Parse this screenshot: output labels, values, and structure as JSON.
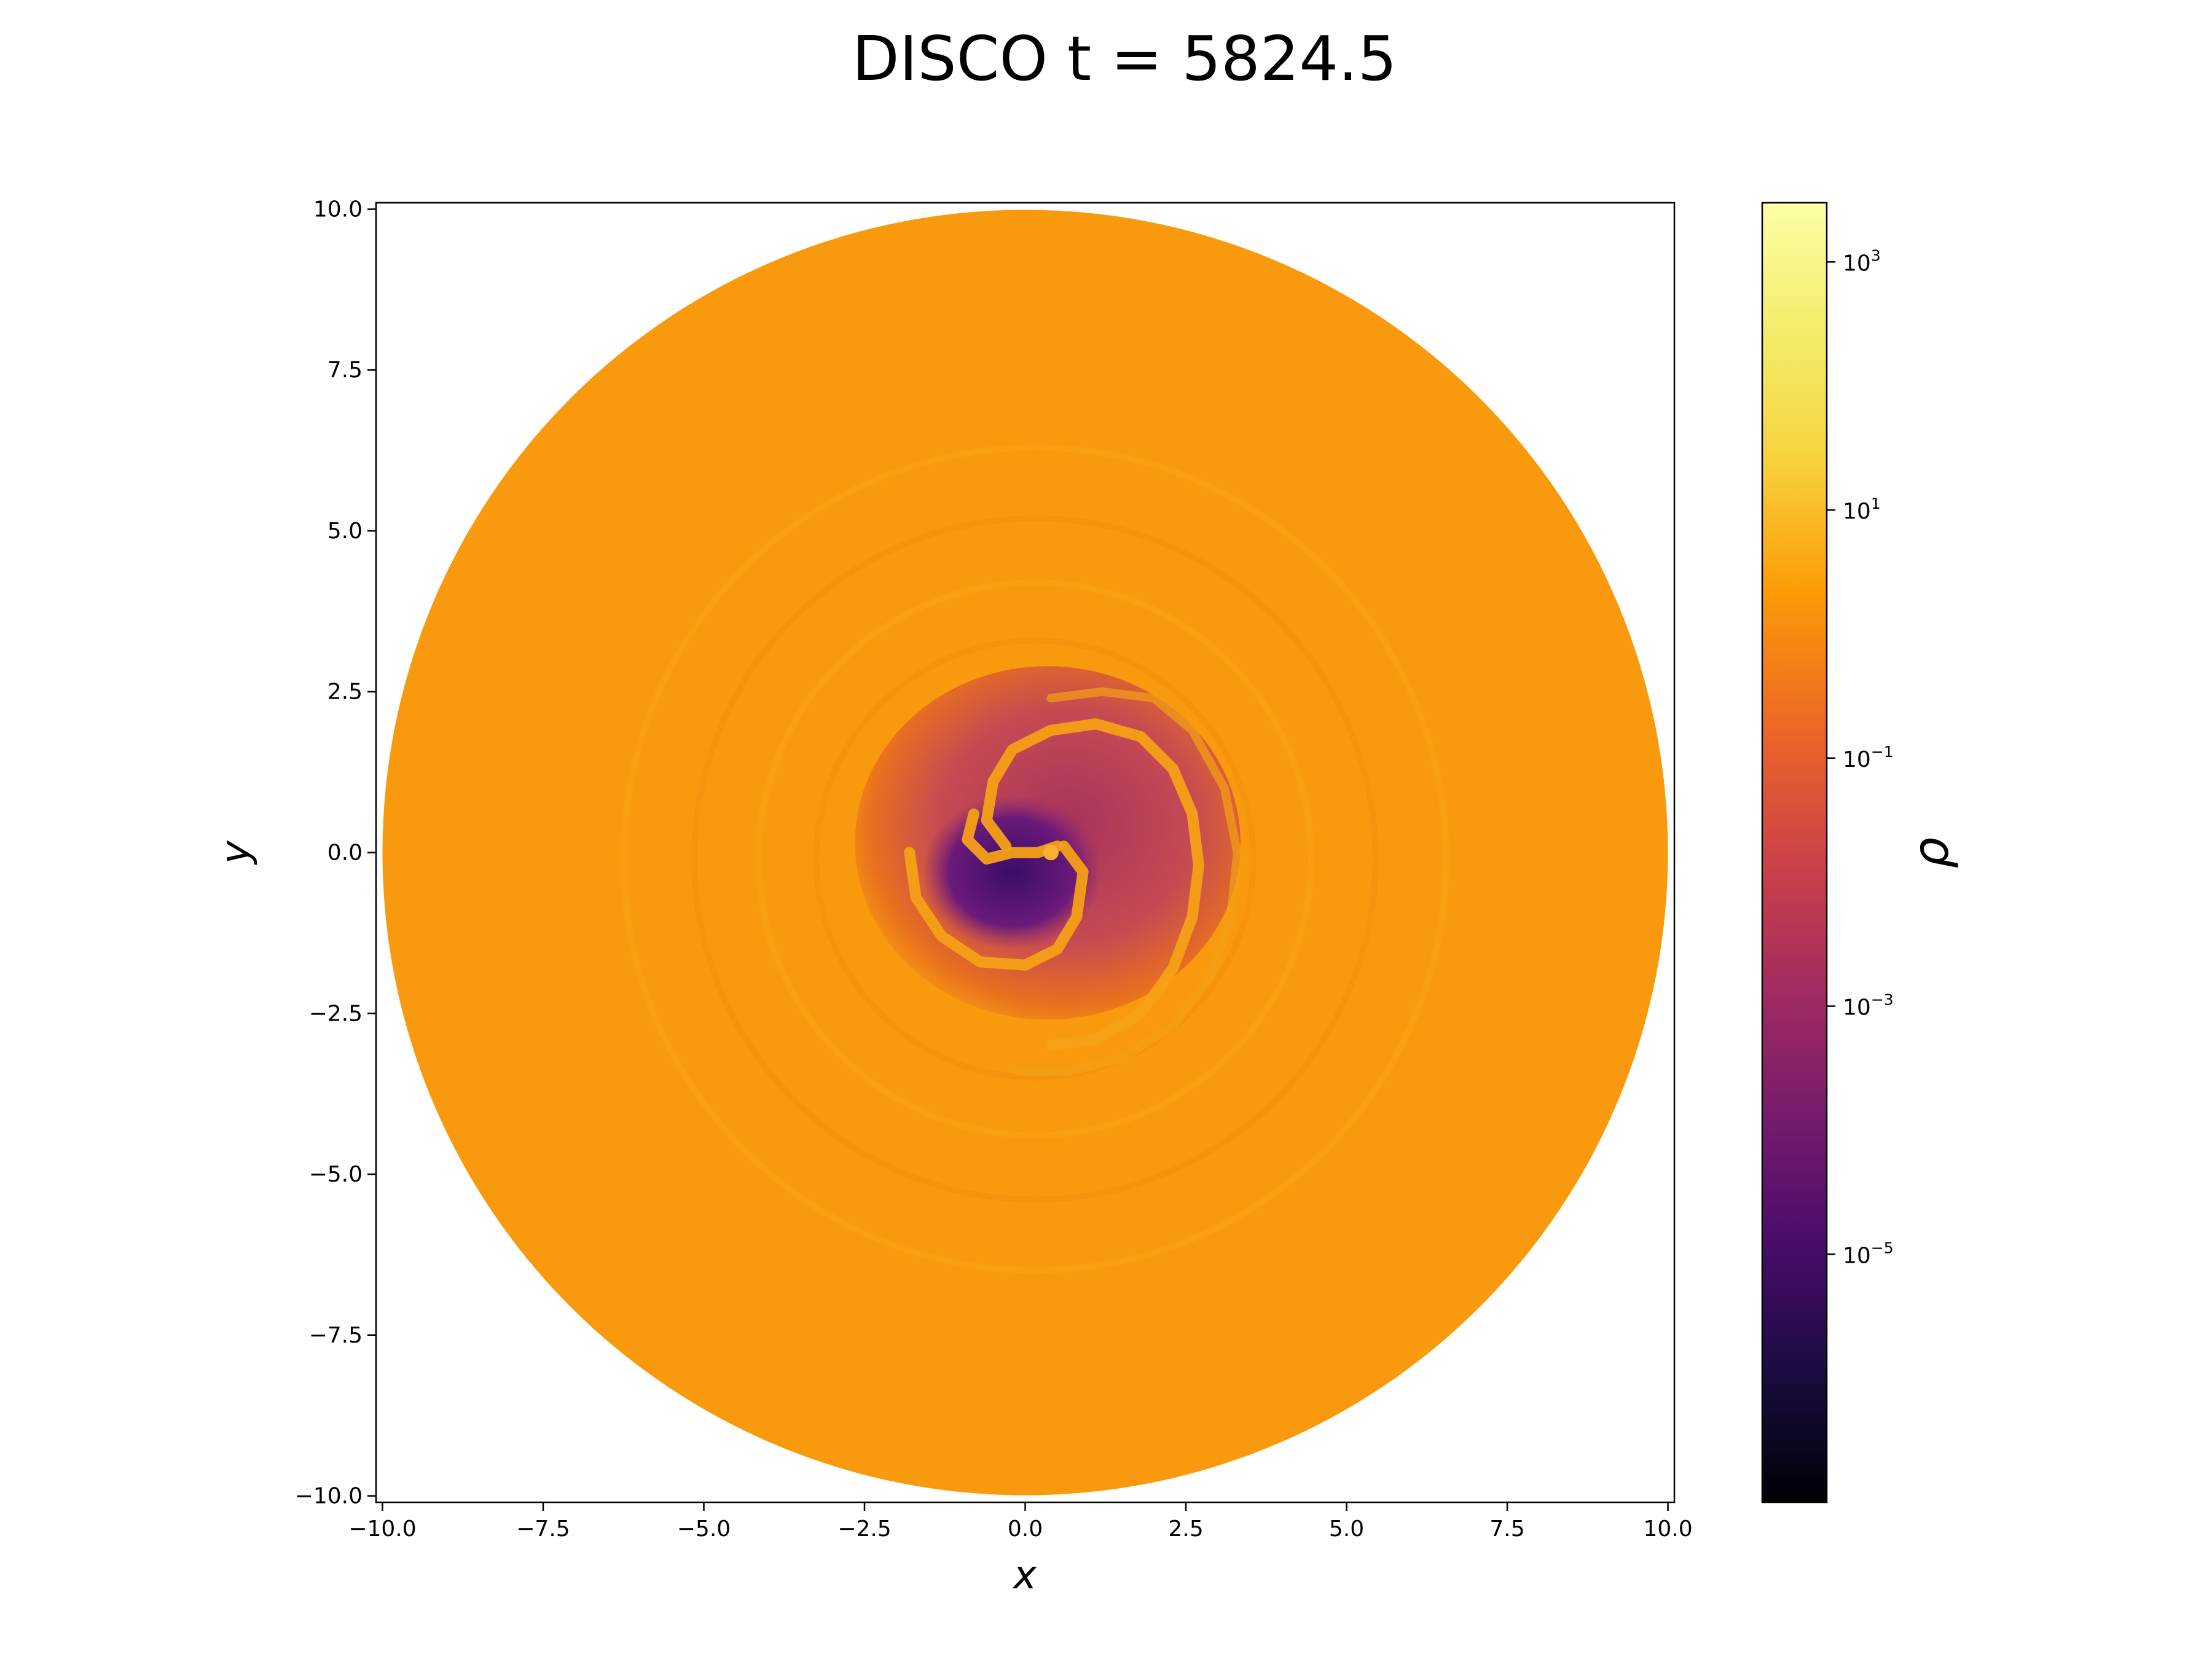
{
  "chart_data": {
    "type": "heatmap",
    "title": "DISCO t = 5824.5",
    "xlabel": "x",
    "ylabel": "y",
    "xlim": [
      -10.1,
      10.1
    ],
    "ylim": [
      -10.1,
      10.1
    ],
    "x_ticks": [
      -10.0,
      -7.5,
      -5.0,
      -2.5,
      0.0,
      2.5,
      5.0,
      7.5,
      10.0
    ],
    "y_ticks": [
      -10.0,
      -7.5,
      -5.0,
      -2.5,
      0.0,
      2.5,
      5.0,
      7.5,
      10.0
    ],
    "x_tick_labels": [
      "−10.0",
      "−7.5",
      "−5.0",
      "−2.5",
      "0.0",
      "2.5",
      "5.0",
      "7.5",
      "10.0"
    ],
    "y_tick_labels": [
      "−10.0",
      "−7.5",
      "−5.0",
      "−2.5",
      "0.0",
      "2.5",
      "5.0",
      "7.5",
      "10.0"
    ],
    "domain_radius": 10.0,
    "background_density": 30,
    "colormap": "inferno",
    "colorbar": {
      "label": "ρ",
      "scale": "log",
      "range": [
        1e-07,
        3000
      ],
      "ticks": [
        {
          "value": 1000,
          "base": "10",
          "exp": "3"
        },
        {
          "value": 10,
          "base": "10",
          "exp": "1"
        },
        {
          "value": 0.1,
          "base": "10",
          "exp": "−1"
        },
        {
          "value": 0.001,
          "base": "10",
          "exp": "−3"
        },
        {
          "value": 1e-05,
          "base": "10",
          "exp": "−5"
        }
      ]
    },
    "colors": {
      "disk": "#f99a0e",
      "cavity_outer": "#e8701e",
      "cavity_mid": "#b53c5a",
      "cavity_inner": "#6a1a7a",
      "cavity_deep": "#3a0d6a",
      "stream": "#f5a016"
    }
  }
}
